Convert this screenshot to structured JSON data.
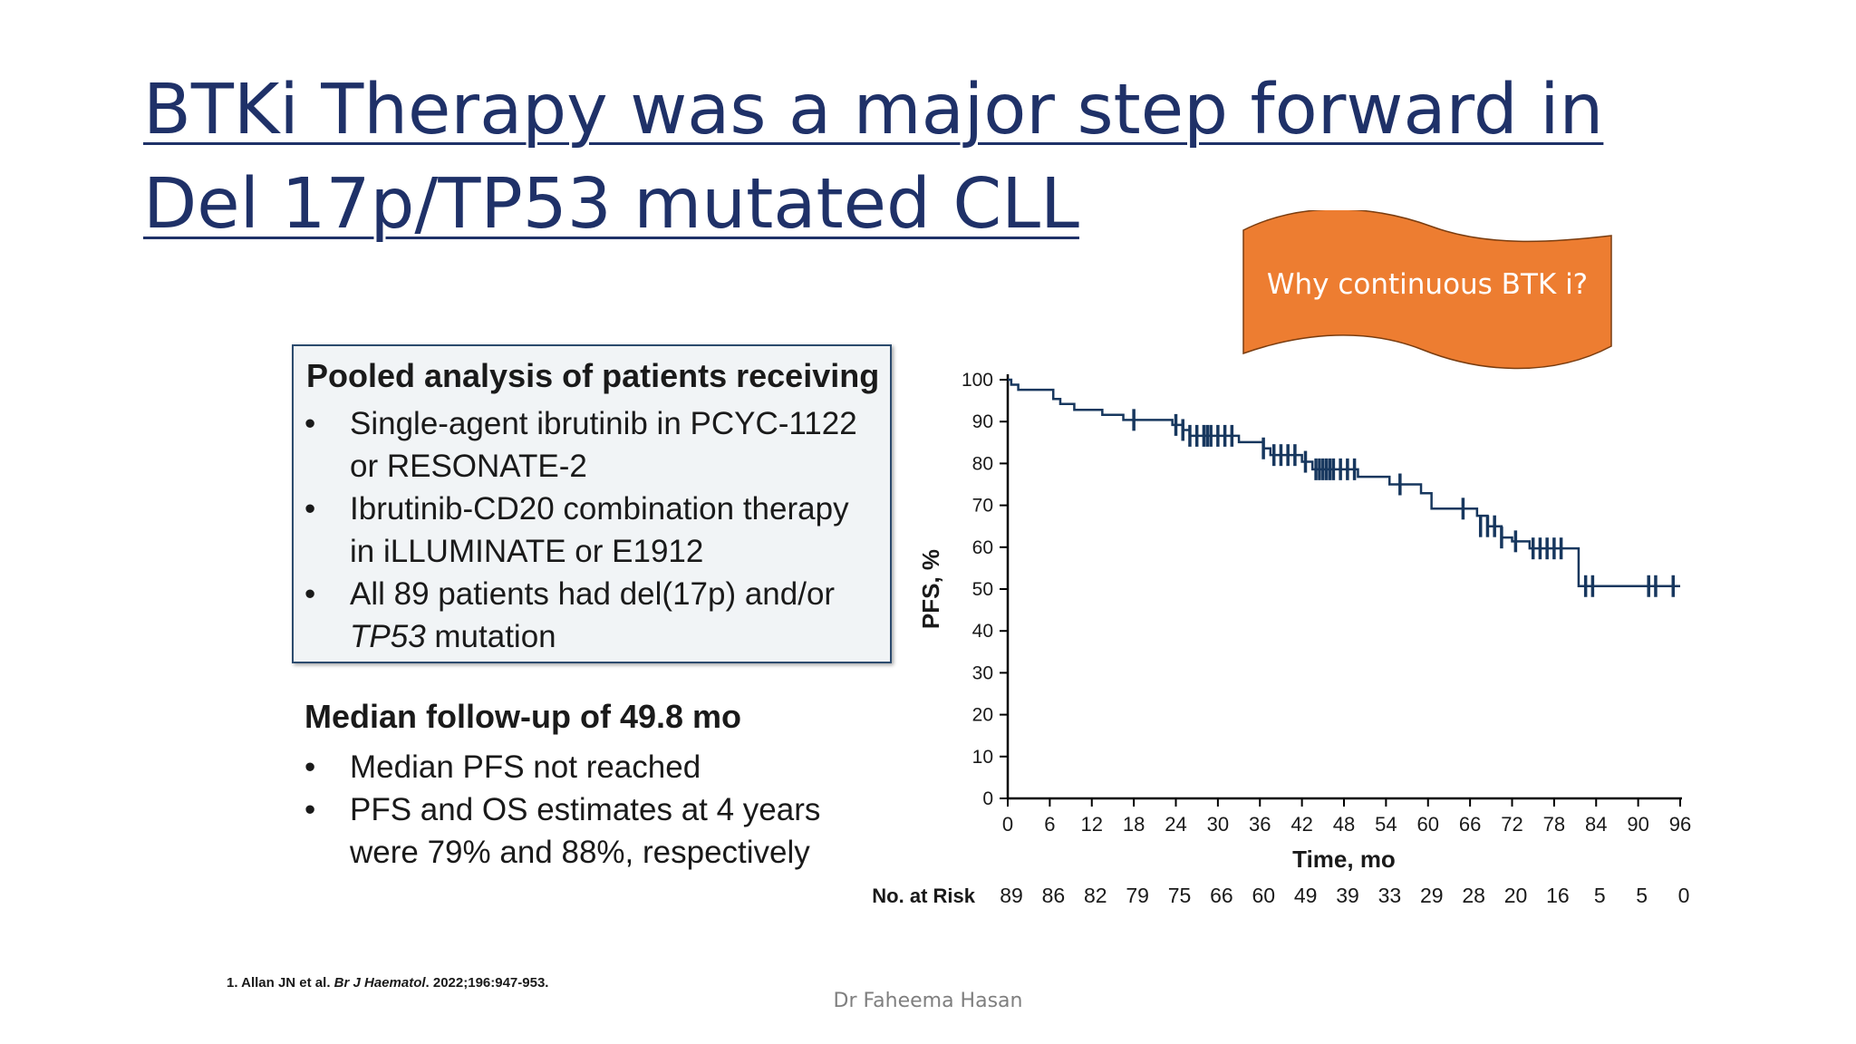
{
  "slide": {
    "title": "BTKi Therapy was a major step forward in Del 17p/TP53 mutated CLL",
    "callout": "Why continuous BTK i?",
    "footer": "Dr Faheema Hasan",
    "colors": {
      "title": "#1f3168",
      "callout_fill": "#ed7d31",
      "curve": "#17375e",
      "box_border": "#2c4b6e"
    }
  },
  "pooled_box": {
    "heading": "Pooled analysis of patients receiving",
    "bullets": [
      {
        "line1": "Single-agent ibrutinib in PCYC-1122",
        "line2": "or RESONATE-2"
      },
      {
        "line1": "Ibrutinib-CD20 combination therapy",
        "line2": "in iLLUMINATE or E1912"
      },
      {
        "line1": "All 89 patients had del(17p) and/or",
        "line2_italic": "TP53",
        "line2_rest": " mutation"
      }
    ]
  },
  "follow_up": {
    "heading": "Median follow-up of 49.8 mo",
    "bullets": [
      {
        "line1": "Median PFS not reached"
      },
      {
        "line1": "PFS and OS estimates at 4 years",
        "line2": "were 79% and 88%, respectively"
      }
    ]
  },
  "reference": {
    "prefix": "1. Allan JN et al. ",
    "journal": "Br J Haematol",
    "suffix": ". 2022;196:947-953."
  },
  "chart_data": {
    "type": "line",
    "title": "",
    "xlabel": "Time, mo",
    "ylabel": "PFS, %",
    "xlim": [
      0,
      96
    ],
    "ylim": [
      0,
      100
    ],
    "xticks": [
      0,
      6,
      12,
      18,
      24,
      30,
      36,
      42,
      48,
      54,
      60,
      66,
      72,
      78,
      84,
      90,
      96
    ],
    "yticks": [
      0,
      10,
      20,
      30,
      40,
      50,
      60,
      70,
      80,
      90,
      100
    ],
    "grid": false,
    "series": [
      {
        "name": "PFS",
        "step": [
          [
            0,
            100
          ],
          [
            0.5,
            98.8
          ],
          [
            1.5,
            97.6
          ],
          [
            6.5,
            95.4
          ],
          [
            7.5,
            94.2
          ],
          [
            9.5,
            92.8
          ],
          [
            13.5,
            91.6
          ],
          [
            16.5,
            90.4
          ],
          [
            23.5,
            89.2
          ],
          [
            25,
            88
          ],
          [
            26,
            86.6
          ],
          [
            33,
            85.1
          ],
          [
            36.5,
            83.6
          ],
          [
            37.5,
            82
          ],
          [
            42,
            80.4
          ],
          [
            43.5,
            78.6
          ],
          [
            50,
            76.8
          ],
          [
            54.5,
            75
          ],
          [
            59,
            72.9
          ],
          [
            60.5,
            69.2
          ],
          [
            67,
            67.5
          ],
          [
            68.5,
            65
          ],
          [
            70.5,
            62.3
          ],
          [
            72,
            61.4
          ],
          [
            74.5,
            59.7
          ],
          [
            81.5,
            50.7
          ],
          [
            96,
            50.7
          ]
        ],
        "censored": [
          [
            18,
            90.4
          ],
          [
            24,
            89.2
          ],
          [
            25,
            88
          ],
          [
            26,
            86.6
          ],
          [
            27,
            86.6
          ],
          [
            28,
            86.6
          ],
          [
            28.5,
            86.6
          ],
          [
            29,
            86.6
          ],
          [
            30,
            86.6
          ],
          [
            31,
            86.6
          ],
          [
            32,
            86.6
          ],
          [
            36.5,
            83.6
          ],
          [
            38,
            82
          ],
          [
            39,
            82
          ],
          [
            40,
            82
          ],
          [
            41,
            82
          ],
          [
            42.5,
            80.4
          ],
          [
            44,
            78.6
          ],
          [
            44.5,
            78.6
          ],
          [
            45,
            78.6
          ],
          [
            45.5,
            78.6
          ],
          [
            46,
            78.6
          ],
          [
            46.5,
            78.6
          ],
          [
            47.5,
            78.6
          ],
          [
            48.5,
            78.6
          ],
          [
            49.5,
            78.6
          ],
          [
            56,
            75
          ],
          [
            65,
            69.2
          ],
          [
            67.5,
            65
          ],
          [
            68.5,
            65
          ],
          [
            69.5,
            65
          ],
          [
            70.5,
            62.3
          ],
          [
            72.5,
            61.4
          ],
          [
            75,
            59.7
          ],
          [
            76,
            59.7
          ],
          [
            77,
            59.7
          ],
          [
            78,
            59.7
          ],
          [
            79,
            59.7
          ],
          [
            82.5,
            50.7
          ],
          [
            83.5,
            50.7
          ],
          [
            91.5,
            50.7
          ],
          [
            92.5,
            50.7
          ],
          [
            95,
            50.7
          ]
        ]
      }
    ],
    "risk_table": {
      "label": "No. at Risk",
      "times": [
        0,
        6,
        12,
        18,
        24,
        30,
        36,
        42,
        48,
        54,
        60,
        66,
        72,
        78,
        84,
        90,
        96
      ],
      "values": [
        89,
        86,
        82,
        79,
        75,
        66,
        60,
        49,
        39,
        33,
        29,
        28,
        20,
        16,
        5,
        5,
        0
      ]
    }
  }
}
